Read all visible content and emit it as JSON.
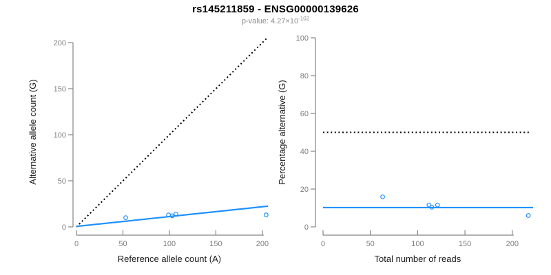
{
  "header": {
    "title": "rs145211859 - ENSG00000139626",
    "pvalue_base": "p-value: 4.27×10",
    "pvalue_exponent": "-102"
  },
  "colors": {
    "accent_blue": "#1E90FF",
    "axis_gray": "#858585",
    "tick_text_gray": "#7d7d7d",
    "axis_label_black": "#1a1a1a",
    "subtitle_gray": "#8c8c8c",
    "dotted_black": "#000000"
  },
  "chart_data": [
    {
      "type": "scatter",
      "panel": "left",
      "xlabel": "Reference allele count (A)",
      "ylabel": "Alternative allele count (G)",
      "xlim": [
        0,
        206
      ],
      "ylim": [
        0,
        206
      ],
      "xticks": [
        0,
        50,
        100,
        150,
        200
      ],
      "yticks": [
        0,
        50,
        100,
        150,
        200
      ],
      "grid": false,
      "legend": false,
      "points": [
        [
          53,
          10
        ],
        [
          99,
          13
        ],
        [
          103,
          12
        ],
        [
          107,
          14
        ],
        [
          204,
          13
        ]
      ],
      "dotted_line": {
        "x1": 0,
        "y1": 0,
        "x2": 206,
        "y2": 206
      },
      "fit_line": {
        "x1": 0,
        "y1": 0.5,
        "x2": 206,
        "y2": 22.5
      }
    },
    {
      "type": "scatter",
      "panel": "right",
      "xlabel": "Total number of reads",
      "ylabel": "Percentage alternative (G)",
      "xlim": [
        0,
        222
      ],
      "ylim": [
        0,
        100
      ],
      "xticks": [
        0,
        50,
        100,
        150,
        200
      ],
      "yticks": [
        0,
        20,
        40,
        60,
        80,
        100
      ],
      "grid": false,
      "legend": false,
      "points": [
        [
          63,
          15.9
        ],
        [
          112,
          11.6
        ],
        [
          115,
          10.4
        ],
        [
          121,
          11.6
        ],
        [
          217,
          6.0
        ]
      ],
      "dotted_line": {
        "x1": 0,
        "y1": 50,
        "x2": 218,
        "y2": 50
      },
      "fit_line": {
        "x1": 0,
        "y1": 10.2,
        "x2": 222,
        "y2": 10.2
      }
    }
  ]
}
